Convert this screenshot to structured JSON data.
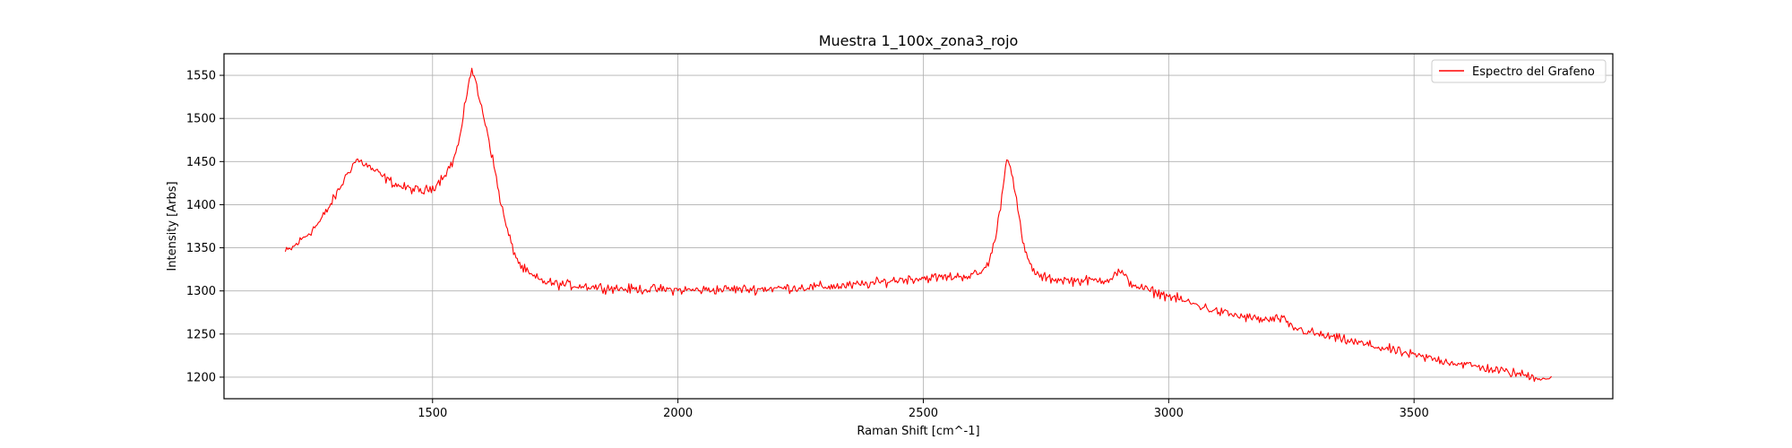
{
  "chart_data": {
    "type": "line",
    "title": "Muestra 1_100x_zona3_rojo",
    "xlabel": "Raman Shift [cm^-1]",
    "ylabel": "Intensity [Arbs]",
    "xlim": [
      1075,
      3905
    ],
    "ylim": [
      1175,
      1575
    ],
    "xticks": [
      1500,
      2000,
      2500,
      3000,
      3500
    ],
    "yticks": [
      1200,
      1250,
      1300,
      1350,
      1400,
      1450,
      1500,
      1550
    ],
    "grid": true,
    "legend_position": "top-right",
    "series": [
      {
        "name": "Espectro del Grafeno",
        "color": "#ff0000",
        "x": [
          1200,
          1215,
          1230,
          1250,
          1270,
          1290,
          1310,
          1330,
          1345,
          1360,
          1380,
          1400,
          1420,
          1440,
          1460,
          1480,
          1500,
          1510,
          1520,
          1530,
          1540,
          1550,
          1560,
          1570,
          1575,
          1580,
          1585,
          1590,
          1600,
          1610,
          1620,
          1630,
          1640,
          1650,
          1660,
          1670,
          1680,
          1700,
          1720,
          1750,
          1800,
          1850,
          1900,
          1950,
          2000,
          2050,
          2100,
          2150,
          2200,
          2250,
          2300,
          2350,
          2400,
          2450,
          2500,
          2550,
          2600,
          2620,
          2630,
          2640,
          2650,
          2660,
          2665,
          2670,
          2675,
          2680,
          2690,
          2700,
          2710,
          2720,
          2730,
          2740,
          2760,
          2800,
          2850,
          2880,
          2900,
          2920,
          2950,
          3000,
          3050,
          3100,
          3150,
          3200,
          3230,
          3250,
          3300,
          3350,
          3400,
          3450,
          3500,
          3550,
          3600,
          3650,
          3700,
          3750,
          3780
        ],
        "y": [
          1345,
          1350,
          1358,
          1368,
          1380,
          1398,
          1418,
          1440,
          1452,
          1448,
          1440,
          1432,
          1425,
          1420,
          1418,
          1415,
          1420,
          1425,
          1432,
          1440,
          1448,
          1465,
          1490,
          1530,
          1548,
          1555,
          1550,
          1535,
          1512,
          1490,
          1460,
          1430,
          1400,
          1375,
          1355,
          1340,
          1328,
          1318,
          1312,
          1308,
          1306,
          1304,
          1302,
          1302,
          1301,
          1301,
          1302,
          1302,
          1303,
          1304,
          1305,
          1306,
          1309,
          1313,
          1315,
          1316,
          1318,
          1322,
          1330,
          1345,
          1370,
          1410,
          1435,
          1450,
          1452,
          1440,
          1405,
          1365,
          1340,
          1328,
          1320,
          1316,
          1314,
          1312,
          1312,
          1314,
          1323,
          1310,
          1302,
          1294,
          1285,
          1276,
          1270,
          1266,
          1268,
          1258,
          1250,
          1244,
          1238,
          1232,
          1225,
          1220,
          1215,
          1210,
          1205,
          1200,
          1198
        ]
      }
    ]
  }
}
